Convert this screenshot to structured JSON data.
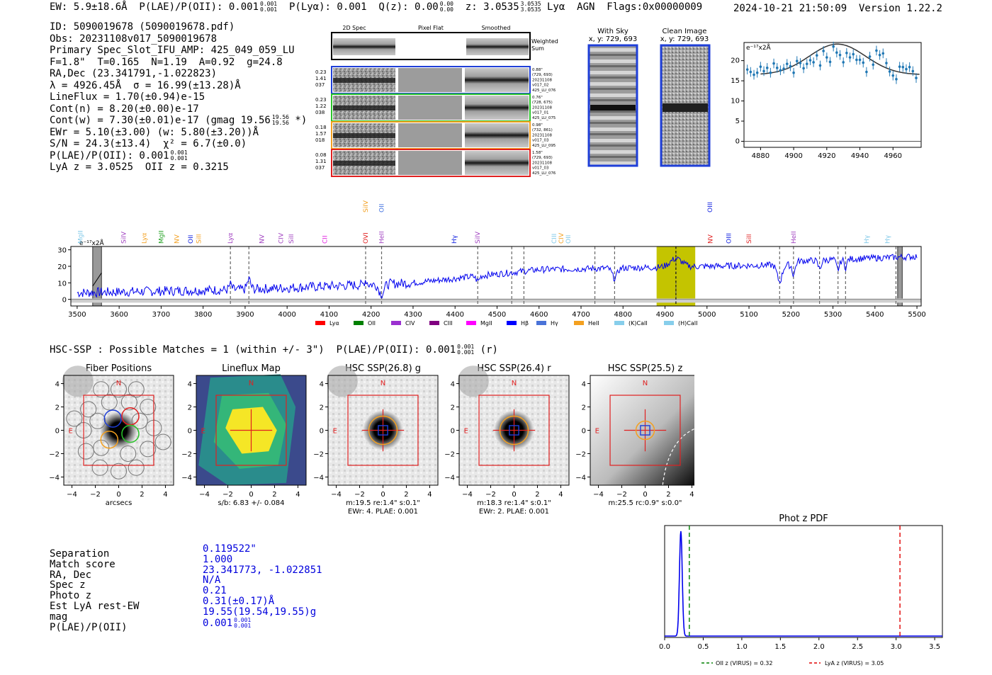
{
  "header": {
    "line": "EW: 5.9±18.6Å  P(LAE)/P(OII): 0.001",
    "frac1": [
      "0.001",
      "0.001"
    ],
    "ply": "  P(Lyα): 0.001  Q(z): 0.00",
    "frac2": [
      "0.00",
      "0.00"
    ],
    "z": "  z: 3.0535",
    "frac3": [
      "3.0535",
      "3.0535"
    ],
    "tail": " Lyα  AGN  Flags:0x00000009",
    "timestamp": "2024-10-21 21:50:09  Version 1.22.2"
  },
  "info": {
    "l1": "ID: 5090019678 (5090019678.pdf)",
    "l2": "Obs: 20231108v017_5090019678",
    "l3": "Primary Spec_Slot_IFU_AMP: 425_049_059_LU",
    "l4": "F=1.8\"  T=0.165  N=1.19  A=0.92  g=24.8",
    "l5": "RA,Dec (23.341791,-1.022823)",
    "l6": "λ = 4926.45Å  σ = 16.99(±13.28)Å",
    "l7": "LineFlux = 1.70(±0.94)e-15",
    "l8": "Cont(n) = 8.20(±0.00)e-17",
    "l9a": "Cont(w) = 7.30(±0.01)e-17 (gmag 19.56",
    "l9f": [
      "19.56",
      "19.56"
    ],
    "l9b": " *)",
    "l10": "EWr = 5.10(±3.00) (w: 5.80(±3.20))Å",
    "l11": "S/N = 24.3(±13.4)  χ² = 6.7(±0.0)",
    "l12a": "P(LAE)/P(OII): 0.001",
    "l12f": [
      "0.001",
      "0.001"
    ],
    "l13": "LyA z = 3.0525  OII z = 0.3215"
  },
  "cutouts": {
    "col_heads": [
      "2D Spec",
      "Pixel Flat",
      "Smoothed"
    ],
    "weighted": "Weighted\nSum",
    "rows": [
      {
        "left": [
          "0.23",
          "1.41",
          "037"
        ],
        "right": [
          "0.88\"",
          "(729, 693)",
          "20231108",
          "v017_02",
          "425_LU_076"
        ],
        "color": "#1f3fd8"
      },
      {
        "left": [
          "0.23",
          "1.22",
          "038"
        ],
        "right": [
          "0.76\"",
          "(728, 675)",
          "20231108",
          "v017_01",
          "425_LU_075"
        ],
        "color": "#2cc42c"
      },
      {
        "left": [
          "0.18",
          "1.57",
          "018"
        ],
        "right": [
          "0.98\"",
          "(732, 861)",
          "20231108",
          "v017_03",
          "425_LU_095"
        ],
        "color": "#f3a020"
      },
      {
        "left": [
          "0.08",
          "1.31",
          "037"
        ],
        "right": [
          "1.58\"",
          "(729, 693)",
          "20231108",
          "v017_03",
          "425_LU_076"
        ],
        "color": "#e02020"
      }
    ],
    "with_sky": [
      "With Sky",
      "x, y: 729, 693"
    ],
    "clean": [
      "Clean Image",
      "x, y: 729, 693"
    ]
  },
  "line_fit": {
    "ylabel": "e⁻¹⁷x2Å",
    "xticks": [
      4880,
      4900,
      4920,
      4940,
      4960
    ],
    "yticks": [
      0,
      5,
      10,
      15,
      20
    ],
    "xlim": [
      4870,
      4977
    ],
    "ylim": [
      -1.5,
      24.5
    ],
    "gauss": {
      "mu": 4926.45,
      "sigma": 16.99,
      "amp": 7.6,
      "base": 16.5
    },
    "points_x": [
      4872,
      4874,
      4876,
      4878,
      4880,
      4882,
      4884,
      4886,
      4888,
      4890,
      4892,
      4894,
      4896,
      4898,
      4900,
      4902,
      4904,
      4906,
      4908,
      4910,
      4912,
      4914,
      4916,
      4918,
      4920,
      4922,
      4924,
      4926,
      4928,
      4930,
      4932,
      4934,
      4936,
      4938,
      4940,
      4942,
      4944,
      4946,
      4948,
      4950,
      4952,
      4954,
      4956,
      4958,
      4960,
      4962,
      4964,
      4966,
      4968,
      4970,
      4972,
      4974
    ],
    "points_y": [
      17.8,
      17.2,
      16.5,
      17.0,
      18.5,
      17.4,
      18.2,
      17.0,
      19.3,
      18.2,
      17.6,
      18.0,
      19.2,
      18.6,
      17.0,
      19.9,
      19.4,
      18.1,
      19.2,
      20.1,
      19.6,
      21.3,
      18.8,
      22.4,
      20.8,
      19.7,
      23.5,
      22.0,
      21.4,
      19.6,
      21.9,
      20.8,
      21.6,
      20.2,
      20.2,
      19.5,
      17.2,
      21.0,
      19.0,
      22.5,
      21.4,
      21.8,
      19.4,
      17.3,
      16.3,
      15.4,
      18.5,
      18.4,
      17.9,
      18.4,
      17.4,
      15.7
    ]
  },
  "full_spec": {
    "ylabel": "e⁻¹⁷x2Å",
    "xticks": [
      3500,
      3600,
      3700,
      3800,
      3900,
      4000,
      4100,
      4200,
      4300,
      4400,
      4500,
      4600,
      4700,
      4800,
      4900,
      5000,
      5100,
      5200,
      5300,
      5400,
      5500
    ],
    "yticks": [
      0,
      10,
      20,
      30
    ],
    "xlim": [
      3485,
      5510
    ],
    "ylim": [
      -4,
      32
    ],
    "dashed": [
      3865,
      3909,
      4187,
      4225,
      4454,
      4535,
      4564,
      4733,
      4780,
      4926,
      5173,
      5206,
      5268,
      5312,
      5330,
      5450
    ],
    "labels": [
      {
        "t": "MgII",
        "x": 3508,
        "c": "#7fc8e8",
        "h": 1
      },
      {
        "t": "SiIV",
        "x": 3611,
        "c": "#a040c0",
        "h": 1
      },
      {
        "t": "Lyα",
        "x": 3660,
        "c": "#f3a020",
        "h": 1
      },
      {
        "t": "MgII",
        "x": 3700,
        "c": "#20a020",
        "h": 1
      },
      {
        "t": "NV",
        "x": 3737,
        "c": "#f3a020",
        "h": 1
      },
      {
        "t": "OII",
        "x": 3770,
        "c": "#1020e0",
        "h": 1
      },
      {
        "t": "SiII",
        "x": 3790,
        "c": "#f3a020",
        "h": 1
      },
      {
        "t": "Lyα",
        "x": 3865,
        "c": "#a040c0",
        "h": 1
      },
      {
        "t": "NV",
        "x": 3940,
        "c": "#a040c0",
        "h": 1
      },
      {
        "t": "CIV",
        "x": 3985,
        "c": "#a040c0",
        "h": 1
      },
      {
        "t": "SiII",
        "x": 4010,
        "c": "#a040c0",
        "h": 1
      },
      {
        "t": "CII",
        "x": 4090,
        "c": "#e020e0",
        "h": 1
      },
      {
        "t": "OVI",
        "x": 4187,
        "c": "#e02020",
        "h": 1
      },
      {
        "t": "SiIV",
        "x": 4187,
        "c": "#f3a020",
        "h": 2
      },
      {
        "t": "HeII",
        "x": 4225,
        "c": "#a040c0",
        "h": 1
      },
      {
        "t": "OII",
        "x": 4225,
        "c": "#4070e0",
        "h": 2
      },
      {
        "t": "Hγ",
        "x": 4398,
        "c": "#1020e0",
        "h": 1
      },
      {
        "t": "SiIV",
        "x": 4454,
        "c": "#a040c0",
        "h": 1
      },
      {
        "t": "CIII",
        "x": 4636,
        "c": "#7fc8e8",
        "h": 1
      },
      {
        "t": "CIV",
        "x": 4653,
        "c": "#f3a020",
        "h": 1
      },
      {
        "t": "OII",
        "x": 4670,
        "c": "#7fc8e8",
        "h": 1
      },
      {
        "t": "OIII",
        "x": 5007,
        "c": "#1020e0",
        "h": 2
      },
      {
        "t": "NV",
        "x": 5008,
        "c": "#e02020",
        "h": 1
      },
      {
        "t": "OIII",
        "x": 5052,
        "c": "#1020e0",
        "h": 1
      },
      {
        "t": "SiII",
        "x": 5100,
        "c": "#e02020",
        "h": 1
      },
      {
        "t": "HeII",
        "x": 5206,
        "c": "#a040c0",
        "h": 1
      },
      {
        "t": "Hγ",
        "x": 5380,
        "c": "#7fc8e8",
        "h": 1
      },
      {
        "t": "Hγ",
        "x": 5430,
        "c": "#7fc8e8",
        "h": 1
      }
    ],
    "legend": [
      {
        "t": "Lyα",
        "c": "#ff0000"
      },
      {
        "t": "OII",
        "c": "#008000"
      },
      {
        "t": "CIV",
        "c": "#9b30d0"
      },
      {
        "t": "CIII",
        "c": "#800080"
      },
      {
        "t": "MgII",
        "c": "#ff00ff"
      },
      {
        "t": "Hβ",
        "c": "#0000ff"
      },
      {
        "t": "Hγ",
        "c": "#4a73d8"
      },
      {
        "t": "HeII",
        "c": "#f3a020"
      },
      {
        "t": "(K)CaII",
        "c": "#87ceeb"
      },
      {
        "t": "(H)CaII",
        "c": "#87ceeb"
      }
    ]
  },
  "hsc": {
    "header": "HSC-SSP : Possible Matches = 1 (within +/- 3\")  P(LAE)/P(OII): 0.001",
    "hfrac": [
      "0.001",
      "0.001"
    ],
    "htail": " (r)",
    "panels": [
      {
        "title": "Fiber Positions",
        "cap1": "arcsecs",
        "cap2": ""
      },
      {
        "title": "Lineflux Map",
        "cap1": "s/b: 6.83 +/- 0.084",
        "cap2": ""
      },
      {
        "title": "HSC SSP(26.8) g",
        "cap1": "m:19.5  re:1.4\"  s:0.1\"",
        "cap2": "EWr: 4, PLAE: 0.001"
      },
      {
        "title": "HSC SSP(26.4) r",
        "cap1": "m:18.3  re:1.4\"  s:0.1\"",
        "cap2": "EWr: 2, PLAE: 0.001"
      },
      {
        "title": "HSC SSP(25.5) z",
        "cap1": "m:25.5 rc:0.9\"  s:0.0\"",
        "cap2": ""
      }
    ],
    "ticks": [
      "−4",
      "−2",
      "0",
      "2",
      "4"
    ],
    "n": "N",
    "e": "E"
  },
  "table": {
    "labels": [
      "Separation",
      "Match score",
      "RA, Dec",
      "Spec z",
      "Photo z",
      "Est LyA rest-EW",
      "mag",
      "P(LAE)/P(OII)"
    ],
    "values": [
      "0.119522\"",
      "1.000",
      "23.341773, -1.022851",
      "N/A",
      "0.21",
      "0.31(±0.17)Å",
      "19.55(19.54,19.55)g",
      "0.001"
    ],
    "pfrac": [
      "0.001",
      "0.001"
    ]
  },
  "photz": {
    "title": "Phot z PDF",
    "xticks": [
      0.0,
      0.5,
      1.0,
      1.5,
      2.0,
      2.5,
      3.0,
      3.5
    ],
    "xlim": [
      0,
      3.6
    ],
    "oii_z": 0.32,
    "lya_z": 3.05,
    "peak_z": 0.21,
    "legend_oii": "OII z (VIRUS) = 0.32",
    "legend_lya": "LyA z (VIRUS) = 3.05"
  }
}
